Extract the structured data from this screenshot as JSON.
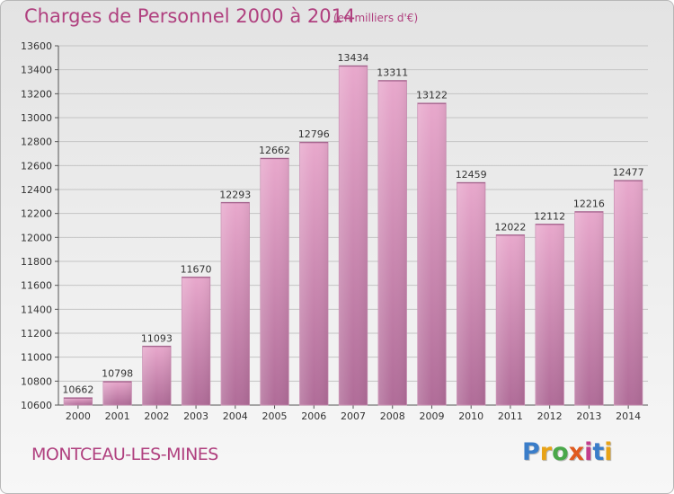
{
  "title": "Charges de Personnel 2000 à 2014",
  "subtitle": "(en milliers d'€)",
  "commune": "MONTCEAU-LES-MINES",
  "logo": {
    "text": "Proxiti",
    "colors": [
      "#3a7dc9",
      "#e8a317",
      "#4aa84a",
      "#e05a1e",
      "#c33c8c",
      "#3a7dc9",
      "#e8a317"
    ]
  },
  "colors": {
    "accent": "#b0407f",
    "bar_top": "#e8a8cc",
    "bar_bottom": "#b06c98",
    "bar_edge": "#c88ab0"
  },
  "chart_data": {
    "type": "bar",
    "categories": [
      "2000",
      "2001",
      "2002",
      "2003",
      "2004",
      "2005",
      "2006",
      "2007",
      "2008",
      "2009",
      "2010",
      "2011",
      "2012",
      "2013",
      "2014"
    ],
    "values": [
      10662,
      10798,
      11093,
      11670,
      12293,
      12662,
      12796,
      13434,
      13311,
      13122,
      12459,
      12022,
      12112,
      12216,
      12477
    ],
    "title": "Charges de Personnel 2000 à 2014",
    "ylim": [
      10600,
      13600
    ],
    "yticks": [
      10600,
      10800,
      11000,
      11200,
      11400,
      11600,
      11800,
      12000,
      12200,
      12400,
      12600,
      12800,
      13000,
      13200,
      13400,
      13600
    ],
    "grid": true,
    "data_labels": true
  }
}
